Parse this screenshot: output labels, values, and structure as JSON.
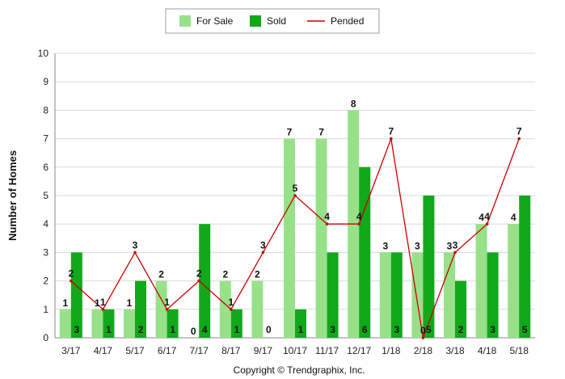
{
  "chart_data": {
    "type": "bar",
    "title": "",
    "xlabel": "",
    "ylabel": "Number of Homes",
    "ylim": [
      0,
      10
    ],
    "yticks": [
      0,
      1,
      2,
      3,
      4,
      5,
      6,
      7,
      8,
      9,
      10
    ],
    "grid": true,
    "legend_position": "top-center",
    "categories": [
      "3/17",
      "4/17",
      "5/17",
      "6/17",
      "7/17",
      "8/17",
      "9/17",
      "10/17",
      "11/17",
      "12/17",
      "1/18",
      "2/18",
      "3/18",
      "4/18",
      "5/18"
    ],
    "series": [
      {
        "name": "For Sale",
        "type": "bar",
        "color": "#99e08a",
        "values": [
          1,
          1,
          1,
          2,
          0,
          2,
          2,
          7,
          7,
          8,
          3,
          3,
          3,
          4,
          4
        ]
      },
      {
        "name": "Sold",
        "type": "bar",
        "color": "#12a81c",
        "values": [
          3,
          1,
          2,
          1,
          4,
          1,
          0,
          1,
          3,
          6,
          3,
          5,
          2,
          3,
          5
        ]
      },
      {
        "name": "Pended",
        "type": "line",
        "color": "#cc0000",
        "values": [
          2,
          1,
          3,
          1,
          2,
          1,
          3,
          5,
          4,
          4,
          7,
          0,
          3,
          4,
          7
        ]
      }
    ]
  },
  "footer": {
    "copyright": "Copyright © Trendgraphix, Inc."
  }
}
